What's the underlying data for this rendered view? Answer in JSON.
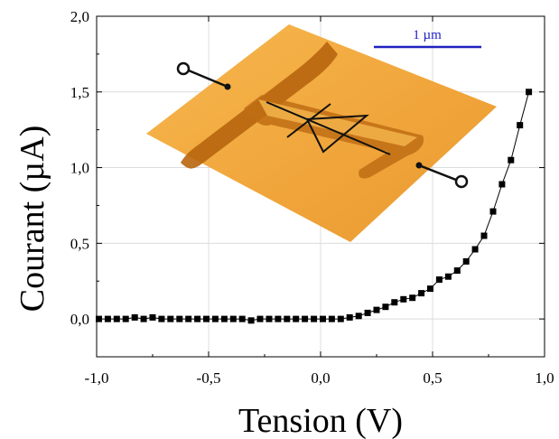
{
  "chart_data": {
    "type": "scatter",
    "xlabel": "Tension (V)",
    "ylabel": "Courant (µA)",
    "xlim": [
      -1.0,
      1.0
    ],
    "ylim": [
      -0.25,
      2.0
    ],
    "xticks": [
      -1.0,
      -0.5,
      0.0,
      0.5,
      1.0
    ],
    "xtick_labels": [
      "-1,0",
      "-0,5",
      "0,0",
      "0,5",
      "1,0"
    ],
    "yticks": [
      0.0,
      0.5,
      1.0,
      1.5,
      2.0
    ],
    "ytick_labels": [
      "0,0",
      "0,5",
      "1,0",
      "1,5",
      "2,0"
    ],
    "grid": true,
    "marker": "square",
    "line_style_below_0": "dotted",
    "color": "#000000",
    "x": [
      -0.99,
      -0.95,
      -0.91,
      -0.87,
      -0.83,
      -0.79,
      -0.75,
      -0.71,
      -0.67,
      -0.63,
      -0.59,
      -0.55,
      -0.51,
      -0.47,
      -0.43,
      -0.39,
      -0.35,
      -0.31,
      -0.27,
      -0.23,
      -0.19,
      -0.15,
      -0.11,
      -0.07,
      -0.03,
      0.01,
      0.05,
      0.09,
      0.13,
      0.17,
      0.21,
      0.25,
      0.29,
      0.33,
      0.37,
      0.41,
      0.45,
      0.49,
      0.53,
      0.57,
      0.61,
      0.65,
      0.69,
      0.73,
      0.77,
      0.81,
      0.85,
      0.89,
      0.93
    ],
    "y": [
      0.0,
      0.0,
      0.0,
      0.0,
      0.01,
      0.0,
      0.01,
      0.0,
      0.0,
      0.0,
      0.0,
      0.0,
      0.0,
      0.0,
      0.0,
      0.0,
      0.0,
      -0.01,
      0.0,
      0.0,
      0.0,
      0.0,
      0.0,
      0.0,
      0.0,
      0.0,
      0.0,
      0.0,
      0.01,
      0.02,
      0.04,
      0.06,
      0.08,
      0.11,
      0.13,
      0.14,
      0.17,
      0.2,
      0.26,
      0.28,
      0.32,
      0.38,
      0.46,
      0.55,
      0.71,
      0.89,
      1.05,
      1.28,
      1.5
    ],
    "inset": {
      "description_visible": "AFM topography of a T-shaped nanostructure with diode symbol and contacts",
      "scale_bar_label": "1 µm",
      "colors": {
        "surface": "#f2a83a",
        "surface_light": "#f8c46a",
        "groove": "#b8650e",
        "scale_bar": "#2020c0"
      }
    }
  }
}
